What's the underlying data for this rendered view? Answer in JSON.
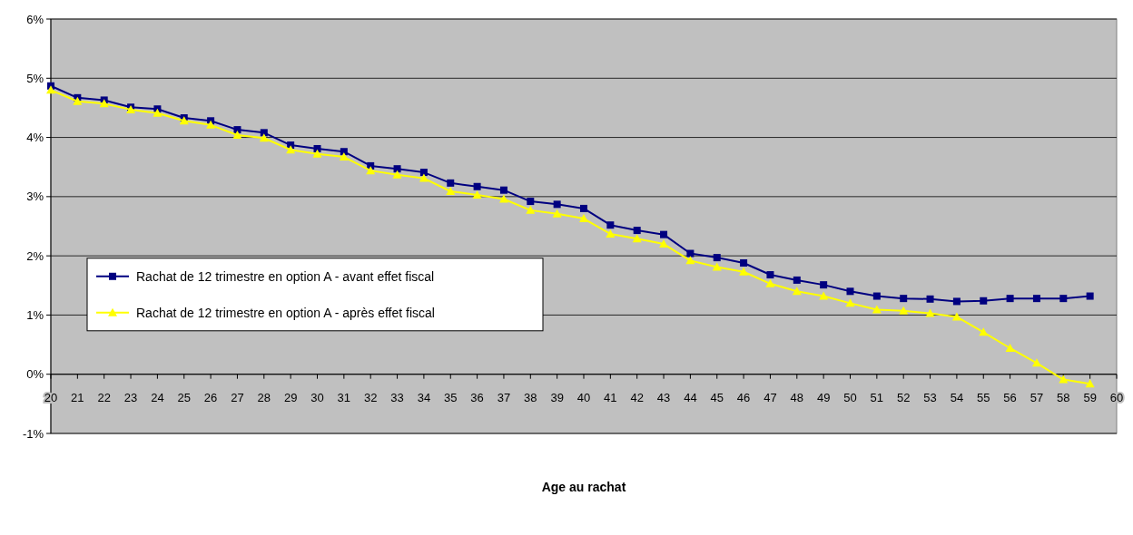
{
  "chart_data": {
    "type": "line",
    "xlabel": "Age au rachat",
    "x": [
      20,
      21,
      22,
      23,
      24,
      25,
      26,
      27,
      28,
      29,
      30,
      31,
      32,
      33,
      34,
      35,
      36,
      37,
      38,
      39,
      40,
      41,
      42,
      43,
      44,
      45,
      46,
      47,
      48,
      49,
      50,
      51,
      52,
      53,
      54,
      55,
      56,
      57,
      58,
      59
    ],
    "series": [
      {
        "name": "Rachat de 12 trimestre en option A - avant effet fiscal",
        "color": "#000080",
        "marker": "square",
        "values": [
          4.87,
          4.67,
          4.63,
          4.51,
          4.48,
          4.33,
          4.28,
          4.13,
          4.08,
          3.87,
          3.81,
          3.76,
          3.52,
          3.47,
          3.41,
          3.23,
          3.17,
          3.11,
          2.92,
          2.87,
          2.8,
          2.52,
          2.43,
          2.36,
          2.04,
          1.97,
          1.88,
          1.68,
          1.59,
          1.51,
          1.4,
          1.32,
          1.28,
          1.27,
          1.23,
          1.24,
          1.28,
          1.28,
          1.28,
          1.32
        ]
      },
      {
        "name": "Rachat de 12 trimestre en option A - après effet fiscal",
        "color": "#ffff00",
        "marker": "triangle",
        "values": [
          4.8,
          4.61,
          4.57,
          4.47,
          4.41,
          4.28,
          4.21,
          4.04,
          3.99,
          3.79,
          3.72,
          3.67,
          3.44,
          3.37,
          3.31,
          3.09,
          3.03,
          2.96,
          2.77,
          2.71,
          2.63,
          2.37,
          2.29,
          2.2,
          1.92,
          1.81,
          1.73,
          1.53,
          1.4,
          1.32,
          1.2,
          1.09,
          1.07,
          1.03,
          0.97,
          0.71,
          0.44,
          0.19,
          -0.09,
          -0.16
        ]
      }
    ],
    "xlim": [
      20,
      60
    ],
    "xticks": [
      20,
      21,
      22,
      23,
      24,
      25,
      26,
      27,
      28,
      29,
      30,
      31,
      32,
      33,
      34,
      35,
      36,
      37,
      38,
      39,
      40,
      41,
      42,
      43,
      44,
      45,
      46,
      47,
      48,
      49,
      50,
      51,
      52,
      53,
      54,
      55,
      56,
      57,
      58,
      59,
      60
    ],
    "ylim": [
      -1,
      6
    ],
    "yticks": [
      {
        "value": -1,
        "label": "-1%"
      },
      {
        "value": 0,
        "label": "0%"
      },
      {
        "value": 1,
        "label": "1%"
      },
      {
        "value": 2,
        "label": "2%"
      },
      {
        "value": 3,
        "label": "3%"
      },
      {
        "value": 4,
        "label": "4%"
      },
      {
        "value": 5,
        "label": "5%"
      },
      {
        "value": 6,
        "label": "6%"
      }
    ],
    "grid": "y",
    "legend": "left",
    "line_style": "solid"
  }
}
